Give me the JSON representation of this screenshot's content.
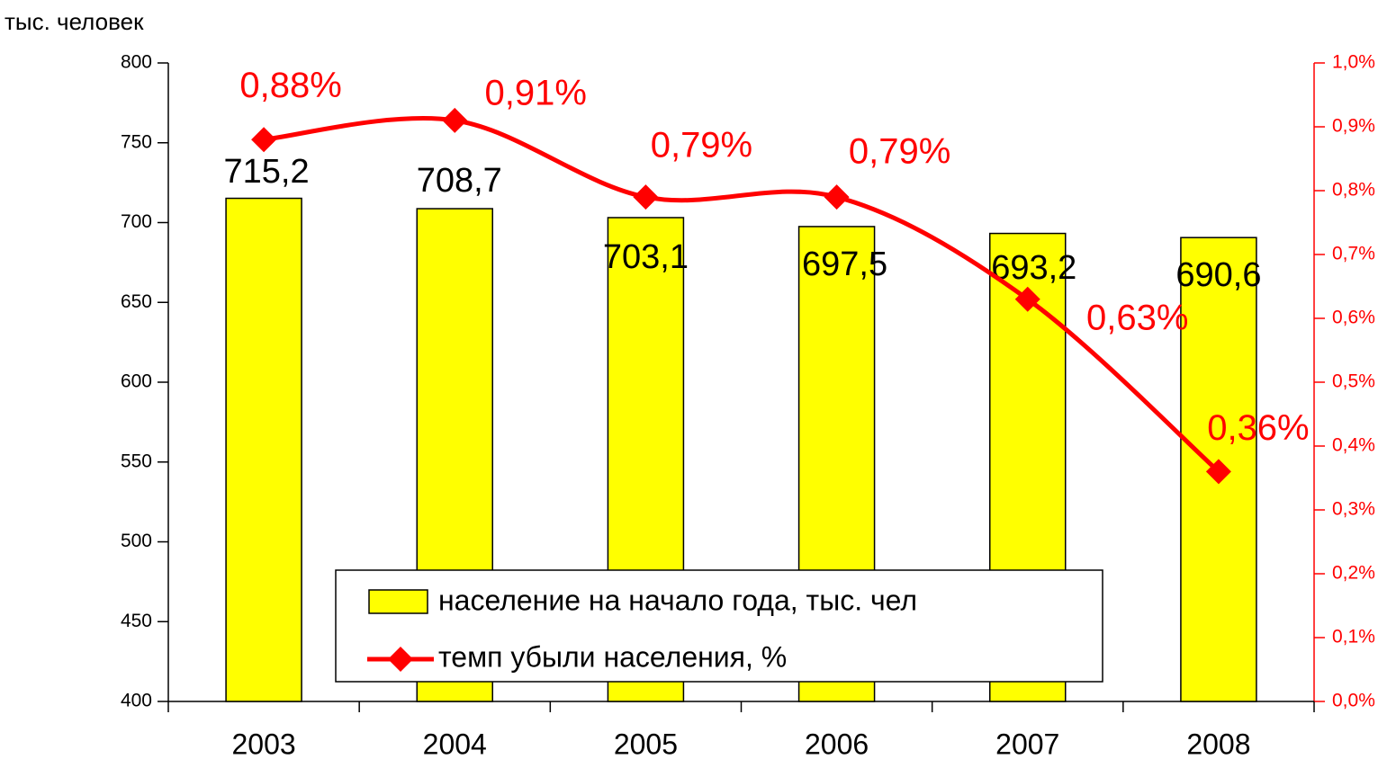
{
  "chart_data": {
    "type": "bar_line",
    "y_label": "тыс. человек",
    "categories": [
      "2003",
      "2004",
      "2005",
      "2006",
      "2007",
      "2008"
    ],
    "series": [
      {
        "name": "население на начало года, тыс. чел",
        "type": "bar",
        "color": "#ffff00",
        "values": [
          715.2,
          708.7,
          703.1,
          697.5,
          693.2,
          690.6
        ],
        "value_labels": [
          "715,2",
          "708,7",
          "703,1",
          "697,5",
          "693,2",
          "690,6"
        ]
      },
      {
        "name": "темп убыли населения, %",
        "type": "line",
        "axis": "y2",
        "color": "#ff0000",
        "values": [
          0.88,
          0.91,
          0.79,
          0.79,
          0.63,
          0.36
        ],
        "value_labels": [
          "0,88%",
          "0,91%",
          "0,79%",
          "0,79%",
          "0,63%",
          "0,36%"
        ]
      }
    ],
    "ylim": [
      400,
      800
    ],
    "yticks": [
      400,
      450,
      500,
      550,
      600,
      650,
      700,
      750,
      800
    ],
    "y2lim": [
      0,
      1.0
    ],
    "y2ticks": [
      {
        "value": 0,
        "label": "0,0%"
      },
      {
        "value": 0.1,
        "label": "0,1%"
      },
      {
        "value": 0.2,
        "label": "0,2%"
      },
      {
        "value": 0.3,
        "label": "0,3%"
      },
      {
        "value": 0.4,
        "label": "0,4%"
      },
      {
        "value": 0.5,
        "label": "0,5%"
      },
      {
        "value": 0.6,
        "label": "0,6%"
      },
      {
        "value": 0.7,
        "label": "0,7%"
      },
      {
        "value": 0.8,
        "label": "0,8%"
      },
      {
        "value": 0.9,
        "label": "0,9%"
      },
      {
        "value": 1.0,
        "label": "1,0%"
      }
    ],
    "legend": "bottom-center",
    "grid": false
  }
}
